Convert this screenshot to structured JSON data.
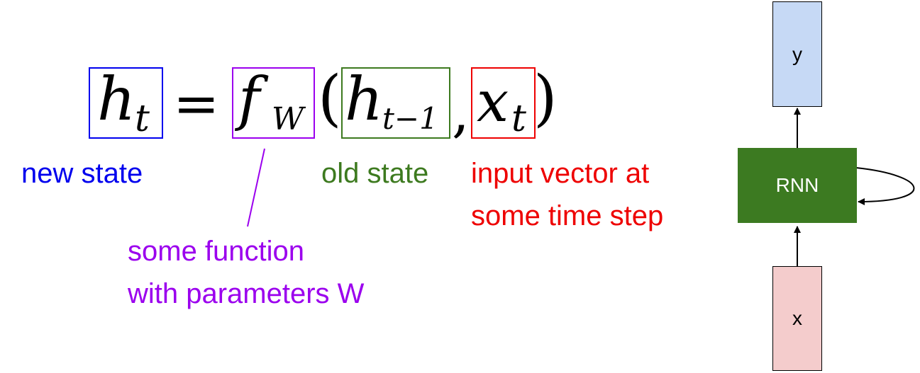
{
  "equation": {
    "h": "h",
    "t_sub": "t",
    "equals": "=",
    "f": "f",
    "W_sub": "W",
    "open_paren": "(",
    "t_minus_1_sub": "t−1",
    "comma": ",",
    "x": "x",
    "close_paren": ")"
  },
  "labels": {
    "new_state": "new state",
    "old_state": "old state",
    "input_vector_line1": "input vector at",
    "input_vector_line2": "some time step",
    "function_line1": "some function",
    "function_line2": "with parameters W"
  },
  "rnn_diagram": {
    "output_label": "y",
    "core_label": "RNN",
    "input_label": "x"
  },
  "colors": {
    "new_state": "#0000ee",
    "function": "#9b00ee",
    "old_state": "#3d7a1f",
    "input": "#ee0000",
    "rnn_core_fill": "#3c7a21",
    "output_fill": "#c6d9f5",
    "input_fill": "#f4cccc"
  }
}
